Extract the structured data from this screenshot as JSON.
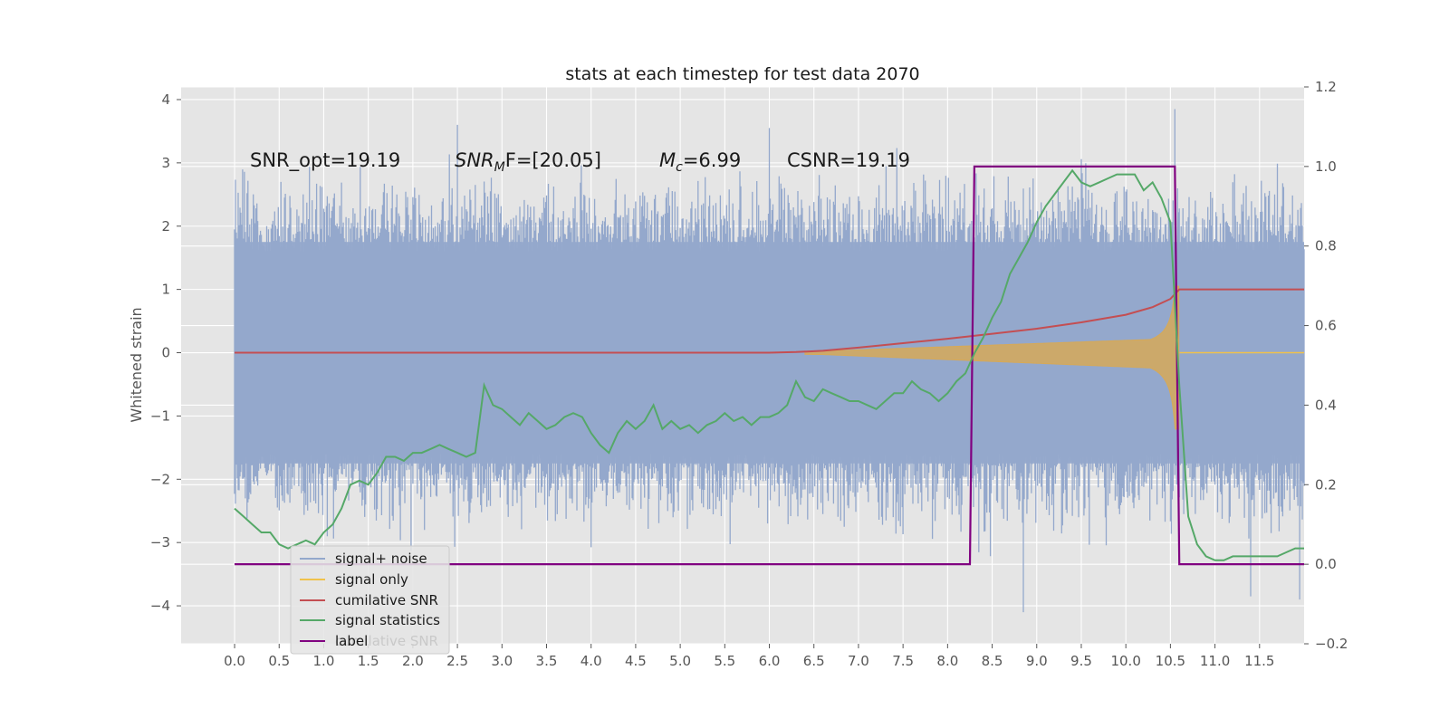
{
  "chart_data": {
    "type": "line",
    "title": "stats at each timestep for test data 2070",
    "xlabel": "",
    "ylabel": "Whitened strain",
    "y2label": "",
    "xlim": [
      -0.6,
      12.0
    ],
    "ylim": [
      -4.6,
      4.2
    ],
    "y2lim": [
      -0.2,
      1.2
    ],
    "grid": true,
    "x_ticks": [
      "0.0",
      "0.5",
      "1.0",
      "1.5",
      "2.0",
      "2.5",
      "3.0",
      "3.5",
      "4.0",
      "4.5",
      "5.0",
      "5.5",
      "6.0",
      "6.5",
      "7.0",
      "7.5",
      "8.0",
      "8.5",
      "9.0",
      "9.5",
      "10.0",
      "10.5",
      "11.0",
      "11.5"
    ],
    "y_ticks": [
      "4",
      "3",
      "2",
      "1",
      "0",
      "−1",
      "−2",
      "−3",
      "−4"
    ],
    "y2_ticks": [
      "1.2",
      "1.0",
      "0.8",
      "0.6",
      "0.4",
      "0.2",
      "0.0",
      "−0.2"
    ],
    "annotations": {
      "snr_opt": "SNR_opt=19.19",
      "snr_mf_main": "SNR",
      "snr_mf_sub": "M",
      "snr_mf_tail": "F=[20.05]",
      "mc_main": "M",
      "mc_sub": "c",
      "mc_tail": "=6.99",
      "csnr": "CSNR=19.19"
    },
    "legend": {
      "placement": "lower-left",
      "entries": [
        "signal+ noise",
        "signal only",
        "cumilative SNR",
        "signal statistics",
        "label"
      ],
      "ghost_text": "cumilative SNR"
    },
    "colors": {
      "noise": "#94a8cc",
      "signal": "#d6a958",
      "cumulative": "#c44e52",
      "statistics": "#55a868",
      "label": "#800080",
      "plot_bg": "#e5e5e5",
      "grid": "#ffffff"
    },
    "series": [
      {
        "name": "signal+ noise",
        "axis": "left",
        "kind": "noise-band",
        "x_range": [
          0.0,
          12.0
        ],
        "envelope": [
          -2.8,
          3.0
        ],
        "extremes": [
          [
            2.5,
            3.6
          ],
          [
            6.0,
            3.55
          ],
          [
            10.55,
            3.85
          ],
          [
            8.85,
            -4.1
          ],
          [
            11.95,
            -3.9
          ],
          [
            11.4,
            -3.85
          ]
        ]
      },
      {
        "name": "signal only",
        "axis": "left",
        "kind": "chirp",
        "x_range": [
          6.0,
          12.0
        ],
        "merger": 10.6,
        "peak": 1.05
      },
      {
        "name": "cumilative SNR",
        "axis": "left",
        "x": [
          0.0,
          6.0,
          6.3,
          6.6,
          7.0,
          7.5,
          8.0,
          8.5,
          9.0,
          9.5,
          10.0,
          10.3,
          10.5,
          10.6,
          12.0
        ],
        "y": [
          0.0,
          0.0,
          0.01,
          0.03,
          0.08,
          0.15,
          0.22,
          0.3,
          0.38,
          0.48,
          0.6,
          0.72,
          0.85,
          1.0,
          1.0
        ]
      },
      {
        "name": "signal statistics",
        "axis": "right",
        "x": [
          0.0,
          0.1,
          0.2,
          0.3,
          0.4,
          0.5,
          0.6,
          0.7,
          0.8,
          0.9,
          1.0,
          1.1,
          1.2,
          1.3,
          1.4,
          1.5,
          1.6,
          1.7,
          1.8,
          1.9,
          2.0,
          2.1,
          2.2,
          2.3,
          2.4,
          2.5,
          2.6,
          2.7,
          2.8,
          2.9,
          3.0,
          3.1,
          3.2,
          3.3,
          3.4,
          3.5,
          3.6,
          3.7,
          3.8,
          3.9,
          4.0,
          4.1,
          4.2,
          4.3,
          4.4,
          4.5,
          4.6,
          4.7,
          4.8,
          4.9,
          5.0,
          5.1,
          5.2,
          5.3,
          5.4,
          5.5,
          5.6,
          5.7,
          5.8,
          5.9,
          6.0,
          6.1,
          6.2,
          6.3,
          6.4,
          6.5,
          6.6,
          6.7,
          6.8,
          6.9,
          7.0,
          7.1,
          7.2,
          7.3,
          7.4,
          7.5,
          7.6,
          7.7,
          7.8,
          7.9,
          8.0,
          8.1,
          8.2,
          8.3,
          8.4,
          8.5,
          8.6,
          8.7,
          8.8,
          8.9,
          9.0,
          9.1,
          9.2,
          9.3,
          9.4,
          9.5,
          9.6,
          9.7,
          9.8,
          9.9,
          10.0,
          10.1,
          10.2,
          10.3,
          10.4,
          10.5,
          10.6,
          10.7,
          10.8,
          10.9,
          11.0,
          11.1,
          11.2,
          11.3,
          11.4,
          11.5,
          11.6,
          11.7,
          11.8,
          11.9,
          12.0
        ],
        "y": [
          0.14,
          0.12,
          0.1,
          0.08,
          0.08,
          0.05,
          0.04,
          0.05,
          0.06,
          0.05,
          0.08,
          0.1,
          0.14,
          0.2,
          0.21,
          0.2,
          0.23,
          0.27,
          0.27,
          0.26,
          0.28,
          0.28,
          0.29,
          0.3,
          0.29,
          0.28,
          0.27,
          0.28,
          0.45,
          0.4,
          0.39,
          0.37,
          0.35,
          0.38,
          0.36,
          0.34,
          0.35,
          0.37,
          0.38,
          0.37,
          0.33,
          0.3,
          0.28,
          0.33,
          0.36,
          0.34,
          0.36,
          0.4,
          0.34,
          0.36,
          0.34,
          0.35,
          0.33,
          0.35,
          0.36,
          0.38,
          0.36,
          0.37,
          0.35,
          0.37,
          0.37,
          0.38,
          0.4,
          0.46,
          0.42,
          0.41,
          0.44,
          0.43,
          0.42,
          0.41,
          0.41,
          0.4,
          0.39,
          0.41,
          0.43,
          0.43,
          0.46,
          0.44,
          0.43,
          0.41,
          0.43,
          0.46,
          0.48,
          0.53,
          0.57,
          0.62,
          0.66,
          0.73,
          0.77,
          0.81,
          0.86,
          0.9,
          0.93,
          0.96,
          0.99,
          0.96,
          0.95,
          0.96,
          0.97,
          0.98,
          0.98,
          0.98,
          0.94,
          0.96,
          0.92,
          0.86,
          0.45,
          0.12,
          0.05,
          0.02,
          0.01,
          0.01,
          0.02,
          0.02,
          0.02,
          0.02,
          0.02,
          0.02,
          0.03,
          0.04,
          0.04
        ]
      },
      {
        "name": "label",
        "axis": "right",
        "x": [
          0.0,
          8.25,
          8.3,
          10.55,
          10.6,
          12.0
        ],
        "y": [
          0.0,
          0.0,
          1.0,
          1.0,
          0.0,
          0.0
        ]
      }
    ]
  }
}
